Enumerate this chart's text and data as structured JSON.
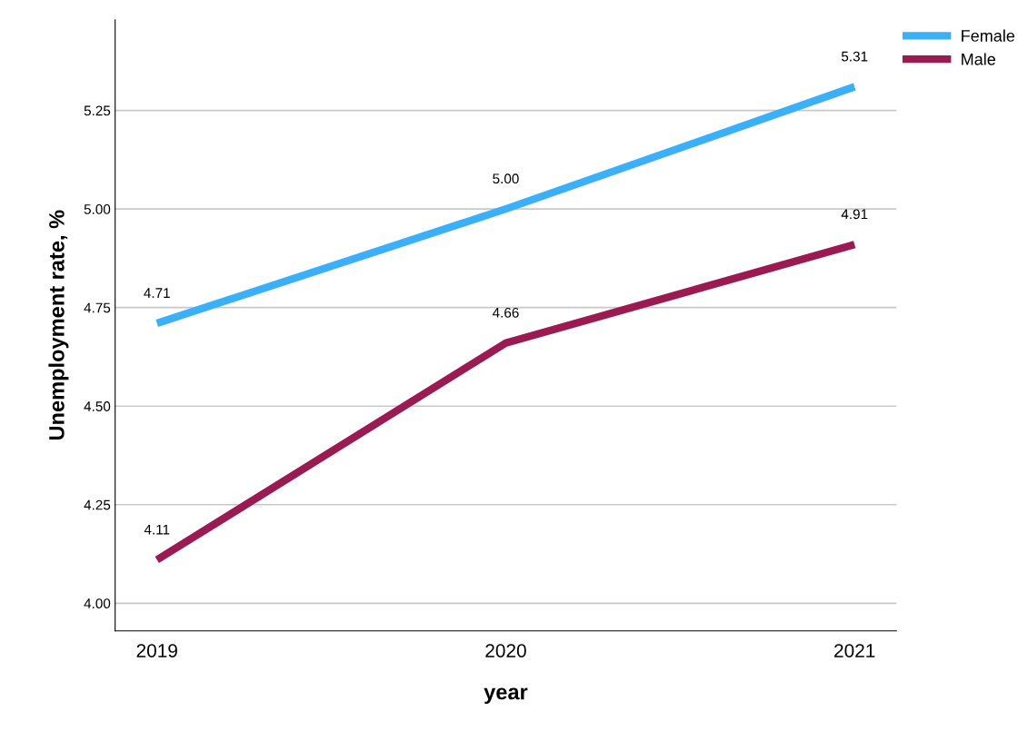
{
  "chart_data": {
    "type": "line",
    "xlabel": "year",
    "ylabel": "Unemployment rate, %",
    "categories": [
      "2019",
      "2020",
      "2021"
    ],
    "series": [
      {
        "name": "Female",
        "color": "#3ab0fa",
        "values": [
          4.71,
          5.0,
          5.31
        ],
        "value_labels": [
          "4.71",
          "5.00",
          "5.31"
        ]
      },
      {
        "name": "Male",
        "color": "#9b1a52",
        "values": [
          4.11,
          4.66,
          4.91
        ],
        "value_labels": [
          "4.11",
          "4.66",
          "4.91"
        ]
      }
    ],
    "ylim": [
      3.93,
      5.48
    ],
    "yticks": [
      {
        "value": 4.0,
        "label": "4.00"
      },
      {
        "value": 4.25,
        "label": "4.25"
      },
      {
        "value": 4.5,
        "label": "4.50"
      },
      {
        "value": 4.75,
        "label": "4.75"
      },
      {
        "value": 5.0,
        "label": "5.00"
      },
      {
        "value": 5.25,
        "label": "5.25"
      }
    ],
    "grid": "y",
    "legend": "top right",
    "line_style": "solid",
    "marker": "none"
  }
}
